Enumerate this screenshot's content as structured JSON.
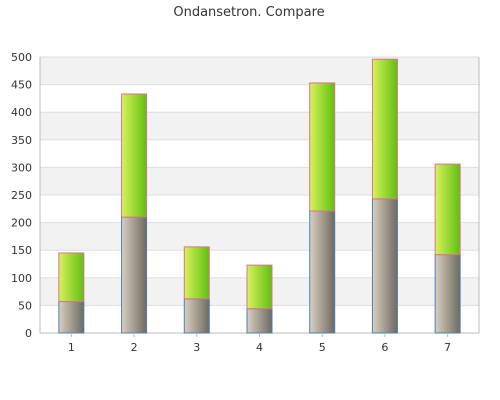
{
  "chart_data": {
    "type": "bar",
    "stacked": true,
    "title": "Ondansetron. Compare",
    "xlabel": "",
    "ylabel": "",
    "categories": [
      "1",
      "2",
      "3",
      "4",
      "5",
      "6",
      "7"
    ],
    "series": [
      {
        "values": [
          57,
          210,
          62,
          44,
          221,
          243,
          142
        ],
        "colors": [
          "#d9cfc0",
          "#6e6a60"
        ],
        "stroke": "#4a7fb8"
      },
      {
        "values": [
          88,
          223,
          94,
          79,
          232,
          253,
          164
        ],
        "colors": [
          "#d8f25a",
          "#5fbf12"
        ],
        "stroke": "#e07090"
      }
    ],
    "ylim": [
      0,
      500
    ],
    "yticks": [
      "0",
      "50",
      "100",
      "150",
      "200",
      "250",
      "300",
      "350",
      "400",
      "450",
      "500"
    ],
    "grid": true,
    "legend": "none",
    "colors": {
      "band_light": "#ffffff",
      "band_dark": "#f2f2f2",
      "grid": "#dddddd",
      "axis": "#bbbbbb"
    }
  }
}
